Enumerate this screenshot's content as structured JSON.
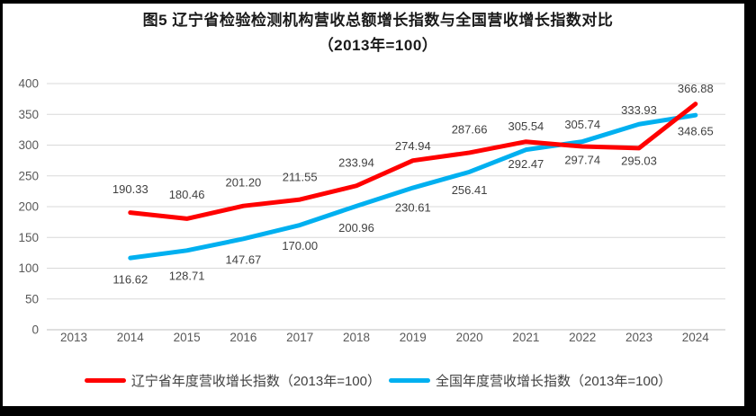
{
  "chart_data": {
    "type": "line",
    "title": "图5  辽宁省检验检测机构营收总额增长指数与全国营收增长指数对比",
    "subtitle": "（2013年=100）",
    "categories": [
      "2013",
      "2014",
      "2015",
      "2016",
      "2017",
      "2018",
      "2019",
      "2020",
      "2021",
      "2022",
      "2023",
      "2024"
    ],
    "y_ticks": [
      0,
      50,
      100,
      150,
      200,
      250,
      300,
      350,
      400
    ],
    "ylim": [
      0,
      400
    ],
    "grid": true,
    "legend_position": "bottom",
    "series": [
      {
        "name": "辽宁省年度营收增长指数（2013年=100）",
        "color": "#FF0000",
        "start_category": "2014",
        "values": [
          190.33,
          180.46,
          201.2,
          211.55,
          233.94,
          274.94,
          287.66,
          305.54,
          297.74,
          295.03,
          366.88
        ],
        "label_dy": [
          -26,
          -27,
          -26,
          -25,
          -26,
          -16,
          -26,
          -17,
          15,
          14,
          -17
        ]
      },
      {
        "name": "全国年度营收增长指数（2013年=100）",
        "color": "#00B0F0",
        "start_category": "2014",
        "values": [
          116.62,
          128.71,
          147.67,
          170.0,
          200.96,
          230.61,
          256.41,
          292.47,
          305.74,
          333.93,
          348.65
        ],
        "label_dy": [
          24,
          28,
          23,
          23,
          24,
          22,
          20,
          16,
          -19,
          -16,
          18
        ]
      }
    ]
  },
  "colors": {
    "grid": "#D9D9D9",
    "baseline": "#BFBFBF",
    "axis_text": "#595959",
    "data_label": "#404040",
    "title": "#1a1a1a",
    "background": "#FFFFFF",
    "frame_border": "#000000"
  }
}
